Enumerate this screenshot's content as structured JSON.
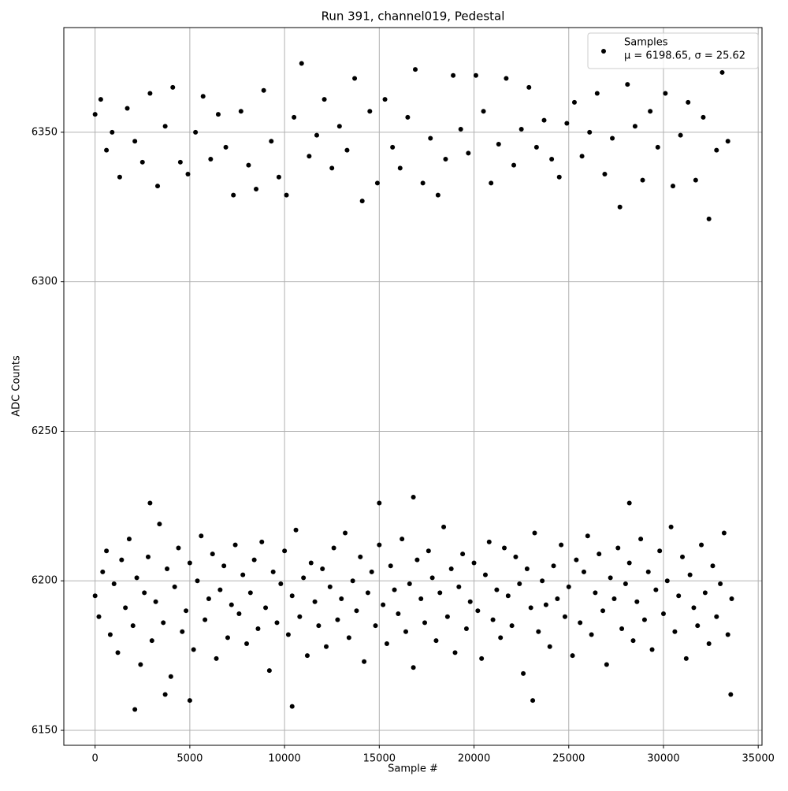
{
  "chart_data": {
    "type": "scatter",
    "title": "Run 391, channel019, Pedestal",
    "x_label": "Sample #",
    "y_label": "ADC Counts",
    "xlim": [
      -1650,
      35200
    ],
    "ylim": [
      6145,
      6385
    ],
    "xticks": [
      0,
      5000,
      10000,
      15000,
      20000,
      25000,
      30000,
      35000
    ],
    "yticks": [
      6150,
      6200,
      6250,
      6300,
      6350
    ],
    "grid": true,
    "legend_position": "upper right",
    "series": [
      {
        "name": "Samples",
        "stats": "μ = 6198.65, σ = 25.62",
        "color": "#000000",
        "x": [
          0,
          300,
          600,
          900,
          1300,
          1700,
          2100,
          2500,
          2900,
          3300,
          3700,
          4100,
          4500,
          4900,
          5300,
          5700,
          6100,
          6500,
          6900,
          7300,
          7700,
          8100,
          8500,
          8900,
          9300,
          9700,
          10100,
          10500,
          10900,
          11300,
          11700,
          12100,
          12500,
          12900,
          13300,
          13700,
          14100,
          14500,
          14900,
          15300,
          15700,
          16100,
          16500,
          16900,
          17300,
          17700,
          18100,
          18500,
          18900,
          19300,
          19700,
          20100,
          20500,
          20900,
          21300,
          21700,
          22100,
          22500,
          22900,
          23300,
          23700,
          24100,
          24500,
          24900,
          25300,
          25700,
          26100,
          26500,
          26900,
          27300,
          27700,
          28100,
          28500,
          28900,
          29300,
          29700,
          30100,
          30500,
          30900,
          31300,
          31700,
          32100,
          32400,
          32800,
          33100,
          33400,
          0,
          200,
          400,
          600,
          800,
          1000,
          1200,
          1400,
          1600,
          1800,
          2000,
          2200,
          2400,
          2600,
          2800,
          3000,
          3200,
          3400,
          3600,
          3800,
          4000,
          4200,
          4400,
          4600,
          4800,
          5000,
          5200,
          5400,
          5600,
          5800,
          6000,
          6200,
          6400,
          6600,
          6800,
          7000,
          7200,
          7400,
          7600,
          7800,
          8000,
          8200,
          8400,
          8600,
          8800,
          9000,
          9200,
          9400,
          9600,
          9800,
          10000,
          10200,
          10400,
          10600,
          10800,
          11000,
          11200,
          11400,
          11600,
          11800,
          12000,
          12200,
          12400,
          12600,
          12800,
          13000,
          13200,
          13400,
          13600,
          13800,
          14000,
          14200,
          14400,
          14600,
          14800,
          15000,
          15200,
          15400,
          15600,
          15800,
          16000,
          16200,
          16400,
          16600,
          16800,
          17000,
          17200,
          17400,
          17600,
          17800,
          18000,
          18200,
          18400,
          18600,
          18800,
          19000,
          19200,
          19400,
          19600,
          19800,
          20000,
          20200,
          20400,
          20600,
          20800,
          21000,
          21200,
          21400,
          21600,
          21800,
          22000,
          22200,
          22400,
          22600,
          22800,
          23000,
          23200,
          23400,
          23600,
          23800,
          24000,
          24200,
          24400,
          24600,
          24800,
          25000,
          25200,
          25400,
          25600,
          25800,
          26000,
          26200,
          26400,
          26600,
          26800,
          27000,
          27200,
          27400,
          27600,
          27800,
          28000,
          28200,
          28400,
          28600,
          28800,
          29000,
          29200,
          29400,
          29600,
          29800,
          30000,
          30200,
          30400,
          30600,
          30800,
          31000,
          31200,
          31400,
          31600,
          31800,
          32000,
          32200,
          32400,
          32600,
          32800,
          33000,
          33200,
          33400,
          33600,
          2100,
          10400,
          3700,
          5000,
          16800,
          2900,
          23100,
          33550,
          15000,
          28200
        ],
        "values": [
          6356,
          6361,
          6344,
          6350,
          6335,
          6358,
          6347,
          6340,
          6363,
          6332,
          6352,
          6365,
          6340,
          6336,
          6350,
          6362,
          6341,
          6356,
          6345,
          6329,
          6357,
          6339,
          6331,
          6364,
          6347,
          6335,
          6329,
          6355,
          6373,
          6342,
          6349,
          6361,
          6338,
          6352,
          6344,
          6368,
          6327,
          6357,
          6333,
          6361,
          6345,
          6338,
          6355,
          6371,
          6333,
          6348,
          6329,
          6341,
          6369,
          6351,
          6343,
          6369,
          6357,
          6333,
          6346,
          6368,
          6339,
          6351,
          6365,
          6345,
          6354,
          6341,
          6335,
          6353,
          6360,
          6342,
          6350,
          6363,
          6336,
          6348,
          6325,
          6366,
          6352,
          6334,
          6357,
          6345,
          6363,
          6332,
          6349,
          6360,
          6334,
          6355,
          6321,
          6344,
          6370,
          6347,
          6195,
          6188,
          6203,
          6210,
          6182,
          6199,
          6176,
          6207,
          6191,
          6214,
          6185,
          6201,
          6172,
          6196,
          6208,
          6180,
          6193,
          6219,
          6186,
          6204,
          6168,
          6198,
          6211,
          6183,
          6190,
          6206,
          6177,
          6200,
          6215,
          6187,
          6194,
          6209,
          6174,
          6197,
          6205,
          6181,
          6192,
          6212,
          6189,
          6202,
          6179,
          6196,
          6207,
          6184,
          6213,
          6191,
          6170,
          6203,
          6186,
          6199,
          6210,
          6182,
          6195,
          6217,
          6188,
          6201,
          6175,
          6206,
          6193,
          6185,
          6204,
          6178,
          6198,
          6211,
          6187,
          6194,
          6216,
          6181,
          6200,
          6190,
          6208,
          6173,
          6196,
          6203,
          6185,
          6212,
          6192,
          6179,
          6205,
          6197,
          6189,
          6214,
          6183,
          6199,
          6171,
          6207,
          6194,
          6186,
          6210,
          6201,
          6180,
          6196,
          6218,
          6188,
          6204,
          6176,
          6198,
          6209,
          6184,
          6193,
          6206,
          6190,
          6174,
          6202,
          6213,
          6187,
          6197,
          6181,
          6211,
          6195,
          6185,
          6208,
          6199,
          6169,
          6204,
          6191,
          6216,
          6183,
          6200,
          6192,
          6178,
          6205,
          6194,
          6212,
          6188,
          6198,
          6175,
          6207,
          6186,
          6203,
          6215,
          6182,
          6196,
          6209,
          6190,
          6172,
          6201,
          6194,
          6211,
          6184,
          6199,
          6206,
          6180,
          6193,
          6214,
          6187,
          6203,
          6177,
          6197,
          6210,
          6189,
          6200,
          6218,
          6183,
          6195,
          6208,
          6174,
          6202,
          6191,
          6185,
          6212,
          6196,
          6179,
          6205,
          6188,
          6199,
          6216,
          6182,
          6194,
          6157,
          6158,
          6162,
          6160,
          6228,
          6226,
          6160,
          6162,
          6226,
          6226
        ]
      }
    ]
  }
}
